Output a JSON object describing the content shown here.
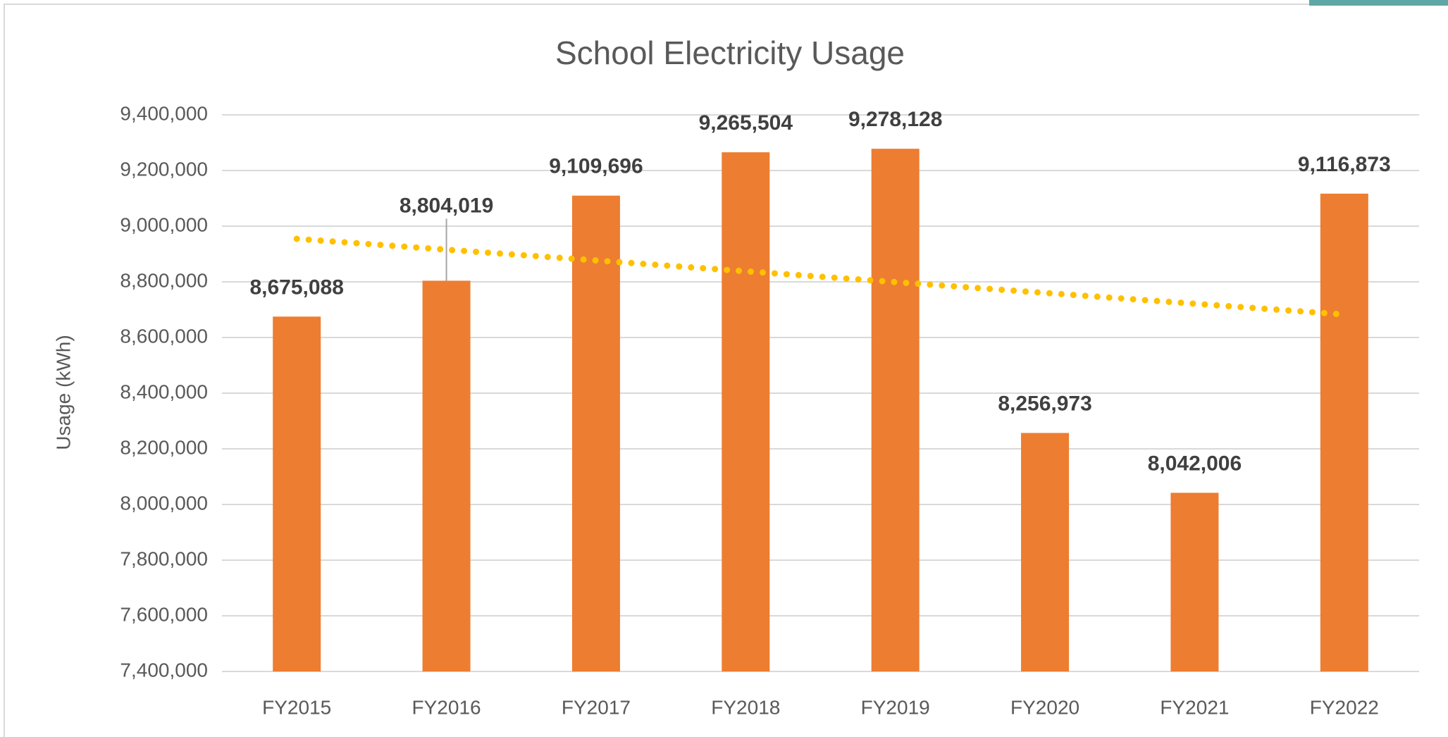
{
  "chart_data": {
    "type": "bar",
    "title": "School Electricity Usage",
    "y_label": "Usage (kWh)",
    "categories": [
      "FY2015",
      "FY2016",
      "FY2017",
      "FY2018",
      "FY2019",
      "FY2020",
      "FY2021",
      "FY2022"
    ],
    "values": [
      8675088,
      8804019,
      9109696,
      9265504,
      9278128,
      8256973,
      8042006,
      9116873
    ],
    "value_labels": [
      "8,675,088",
      "8,804,019",
      "9,109,696",
      "9,265,504",
      "9,278,128",
      "8,256,973",
      "8,042,006",
      "9,116,873"
    ],
    "color": "#ed7d31",
    "trendline": {
      "color": "#ffc000",
      "values": [
        8954497,
        8682575
      ]
    },
    "ylim": [
      7400000,
      9400000
    ],
    "yticks": [
      {
        "value": 7400000,
        "label": "7,400,000"
      },
      {
        "value": 7600000,
        "label": "7,600,000"
      },
      {
        "value": 7800000,
        "label": "7,800,000"
      },
      {
        "value": 8000000,
        "label": "8,000,000"
      },
      {
        "value": 8200000,
        "label": "8,200,000"
      },
      {
        "value": 8400000,
        "label": "8,400,000"
      },
      {
        "value": 8600000,
        "label": "8,600,000"
      },
      {
        "value": 8800000,
        "label": "8,800,000"
      },
      {
        "value": 9000000,
        "label": "9,000,000"
      },
      {
        "value": 9200000,
        "label": "9,200,000"
      },
      {
        "value": 9400000,
        "label": "9,400,000"
      }
    ],
    "grid": true
  }
}
